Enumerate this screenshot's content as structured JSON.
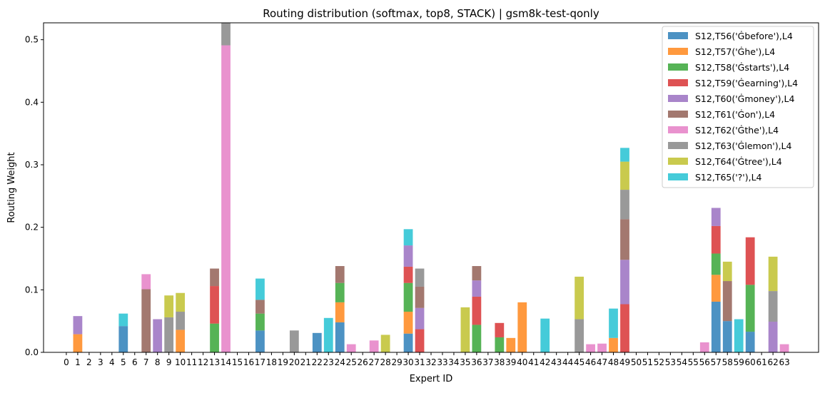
{
  "chart_data": {
    "type": "bar",
    "stacked": true,
    "title": "Routing distribution (softmax, top8, STACK) | gsm8k-test-qonly",
    "xlabel": "Expert ID",
    "ylabel": "Routing Weight",
    "xlim": [
      -2,
      66
    ],
    "ylim": [
      0,
      0.527
    ],
    "yticks": [
      0.0,
      0.1,
      0.2,
      0.3,
      0.4,
      0.5
    ],
    "ytick_labels": [
      "0.0",
      "0.1",
      "0.2",
      "0.3",
      "0.4",
      "0.5"
    ],
    "grid": false,
    "legend_position": "top-right",
    "categories": [
      "0",
      "1",
      "2",
      "3",
      "4",
      "5",
      "6",
      "7",
      "8",
      "9",
      "10",
      "11",
      "12",
      "13",
      "14",
      "15",
      "16",
      "17",
      "18",
      "19",
      "20",
      "21",
      "22",
      "23",
      "24",
      "25",
      "26",
      "27",
      "28",
      "29",
      "30",
      "31",
      "32",
      "33",
      "34",
      "35",
      "36",
      "37",
      "38",
      "39",
      "40",
      "41",
      "42",
      "43",
      "44",
      "45",
      "46",
      "47",
      "48",
      "49",
      "50",
      "51",
      "52",
      "53",
      "54",
      "55",
      "56",
      "57",
      "58",
      "59",
      "60",
      "61",
      "62",
      "63"
    ],
    "series": [
      {
        "name": "S12,T56('Ġbefore'),L4",
        "color": "#1f77b4",
        "points": [
          [
            5,
            0.042
          ],
          [
            17,
            0.035
          ],
          [
            22,
            0.031
          ],
          [
            24,
            0.048
          ],
          [
            30,
            0.03
          ],
          [
            57,
            0.081
          ],
          [
            58,
            0.05
          ],
          [
            60,
            0.033
          ]
        ]
      },
      {
        "name": "S12,T57('Ġhe'),L4",
        "color": "#ff7f0e",
        "points": [
          [
            1,
            0.029
          ],
          [
            10,
            0.036
          ],
          [
            24,
            0.032
          ],
          [
            30,
            0.035
          ],
          [
            39,
            0.023
          ],
          [
            40,
            0.08
          ],
          [
            48,
            0.023
          ],
          [
            57,
            0.043
          ]
        ]
      },
      {
        "name": "S12,T58('Ġstarts'),L4",
        "color": "#2ca02c",
        "points": [
          [
            13,
            0.046
          ],
          [
            17,
            0.027
          ],
          [
            24,
            0.031
          ],
          [
            30,
            0.046
          ],
          [
            36,
            0.044
          ],
          [
            38,
            0.024
          ],
          [
            57,
            0.034
          ],
          [
            60,
            0.075
          ]
        ]
      },
      {
        "name": "S12,T59('Ġearning'),L4",
        "color": "#d62728",
        "points": [
          [
            13,
            0.06
          ],
          [
            30,
            0.026
          ],
          [
            31,
            0.037
          ],
          [
            36,
            0.045
          ],
          [
            38,
            0.023
          ],
          [
            49,
            0.077
          ],
          [
            57,
            0.044
          ],
          [
            60,
            0.076
          ]
        ]
      },
      {
        "name": "S12,T60('Ġmoney'),L4",
        "color": "#9467bd",
        "points": [
          [
            1,
            0.029
          ],
          [
            8,
            0.053
          ],
          [
            30,
            0.034
          ],
          [
            31,
            0.034
          ],
          [
            36,
            0.026
          ],
          [
            49,
            0.071
          ],
          [
            57,
            0.029
          ],
          [
            62,
            0.049
          ]
        ]
      },
      {
        "name": "S12,T61('Ġon'),L4",
        "color": "#8c564b",
        "points": [
          [
            7,
            0.101
          ],
          [
            13,
            0.028
          ],
          [
            17,
            0.022
          ],
          [
            24,
            0.027
          ],
          [
            31,
            0.034
          ],
          [
            36,
            0.023
          ],
          [
            49,
            0.065
          ],
          [
            58,
            0.064
          ]
        ]
      },
      {
        "name": "S12,T62('Ġthe'),L4",
        "color": "#e377c2",
        "points": [
          [
            7,
            0.024
          ],
          [
            14,
            0.491
          ],
          [
            25,
            0.013
          ],
          [
            27,
            0.019
          ],
          [
            46,
            0.013
          ],
          [
            47,
            0.014
          ],
          [
            56,
            0.016
          ],
          [
            63,
            0.013
          ]
        ]
      },
      {
        "name": "S12,T63('Ġlemon'),L4",
        "color": "#7f7f7f",
        "points": [
          [
            9,
            0.056
          ],
          [
            10,
            0.029
          ],
          [
            14,
            0.04
          ],
          [
            20,
            0.035
          ],
          [
            31,
            0.029
          ],
          [
            45,
            0.053
          ],
          [
            49,
            0.047
          ],
          [
            62,
            0.049
          ]
        ]
      },
      {
        "name": "S12,T64('Ġtree'),L4",
        "color": "#bcbd22",
        "points": [
          [
            9,
            0.035
          ],
          [
            10,
            0.03
          ],
          [
            28,
            0.028
          ],
          [
            35,
            0.072
          ],
          [
            45,
            0.068
          ],
          [
            49,
            0.045
          ],
          [
            58,
            0.031
          ],
          [
            62,
            0.055
          ]
        ]
      },
      {
        "name": "S12,T65('?'),L4",
        "color": "#17becf",
        "points": [
          [
            5,
            0.02
          ],
          [
            17,
            0.034
          ],
          [
            23,
            0.055
          ],
          [
            30,
            0.026
          ],
          [
            42,
            0.054
          ],
          [
            48,
            0.047
          ],
          [
            49,
            0.022
          ],
          [
            59,
            0.053
          ]
        ]
      }
    ]
  }
}
